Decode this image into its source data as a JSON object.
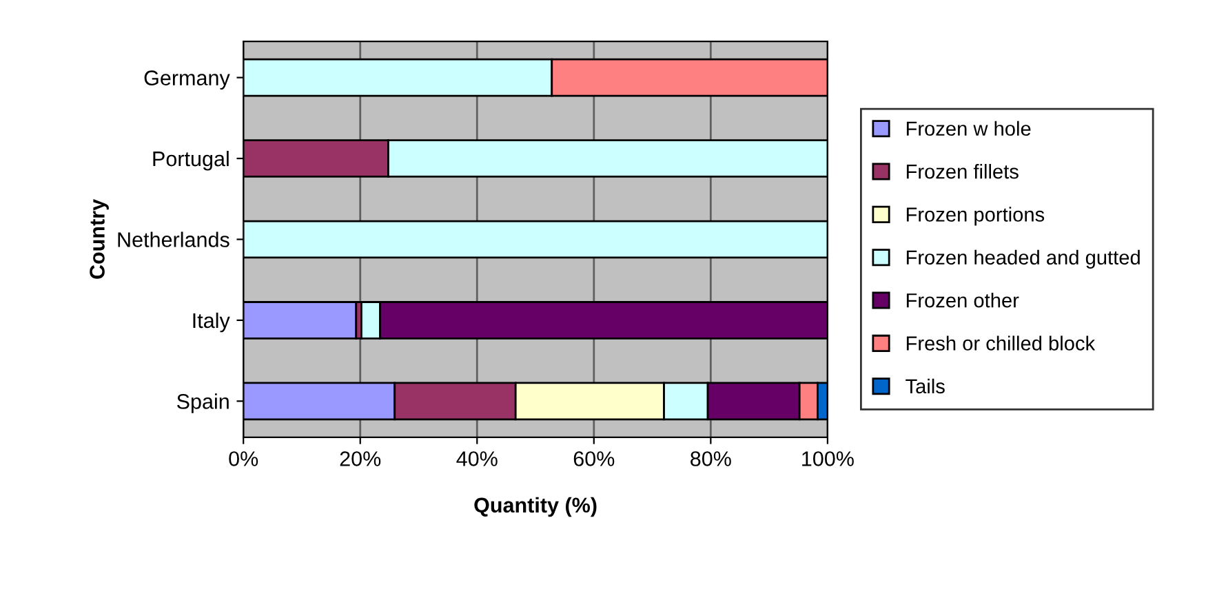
{
  "chart_data": {
    "type": "bar",
    "orientation": "horizontal",
    "stacked": true,
    "xlabel": "Quantity (%)",
    "ylabel": "Country",
    "categories": [
      "Germany",
      "Portugal",
      "Netherlands",
      "Italy",
      "Spain"
    ],
    "series": [
      {
        "name": "Frozen w hole",
        "color": "#9999ff",
        "values": [
          0,
          0,
          0,
          19.3,
          25.9
        ]
      },
      {
        "name": "Frozen fillets",
        "color": "#993366",
        "values": [
          0,
          24.8,
          0,
          0.9,
          20.7
        ]
      },
      {
        "name": "Frozen portions",
        "color": "#ffffcc",
        "values": [
          0,
          0,
          0,
          0,
          25.4
        ]
      },
      {
        "name": "Frozen headed and gutted",
        "color": "#ccffff",
        "values": [
          52.8,
          75.2,
          100,
          3.2,
          7.5
        ]
      },
      {
        "name": "Frozen other",
        "color": "#660066",
        "values": [
          0,
          0,
          0,
          76.6,
          15.7
        ]
      },
      {
        "name": "Fresh or chilled block",
        "color": "#ff8080",
        "values": [
          47.2,
          0,
          0,
          0,
          3.1
        ]
      },
      {
        "name": "Tails",
        "color": "#0066cc",
        "values": [
          0,
          0,
          0,
          0,
          1.7
        ]
      }
    ],
    "xlim": [
      0,
      100
    ],
    "xticks": [
      {
        "value": 0,
        "label": "0%"
      },
      {
        "value": 20,
        "label": "20%"
      },
      {
        "value": 40,
        "label": "40%"
      },
      {
        "value": 60,
        "label": "60%"
      },
      {
        "value": 80,
        "label": "80%"
      },
      {
        "value": 100,
        "label": "100%"
      }
    ],
    "grid": "x",
    "legend": "right"
  }
}
